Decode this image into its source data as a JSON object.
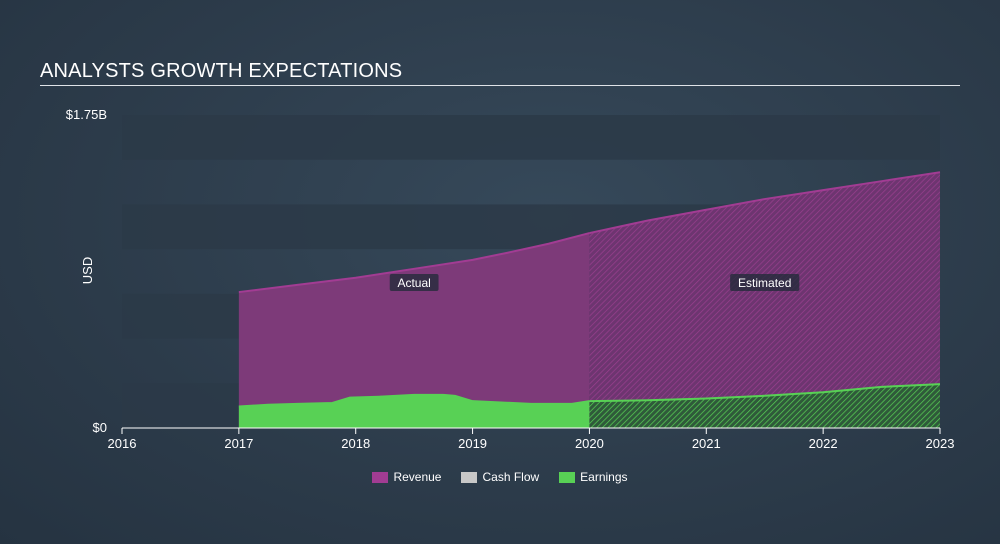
{
  "title": "ANALYSTS GROWTH EXPECTATIONS",
  "colors": {
    "revenue": "#a23c93",
    "cash_flow": "#c8c8c8",
    "earnings": "#58d155",
    "band_dark": "#2b3a48",
    "text": "#ffffff"
  },
  "chart_data": {
    "type": "area",
    "ylabel": "USD",
    "ylim": [
      0,
      1.75
    ],
    "y_unit": "billion USD",
    "y_ticks": [
      {
        "value": 0,
        "label": "$0"
      },
      {
        "value": 1.75,
        "label": "$1.75B"
      }
    ],
    "xlim": [
      2016,
      2023.0
    ],
    "x_ticks": [
      {
        "value": 2016,
        "label": "2016"
      },
      {
        "value": 2017,
        "label": "2017"
      },
      {
        "value": 2018,
        "label": "2018"
      },
      {
        "value": 2019,
        "label": "2019"
      },
      {
        "value": 2020,
        "label": "2020"
      },
      {
        "value": 2021,
        "label": "2021"
      },
      {
        "value": 2022,
        "label": "2022"
      },
      {
        "value": 2023,
        "label": "2023"
      }
    ],
    "actual_estimated_split": 2020,
    "region_labels": {
      "actual": "Actual",
      "estimated": "Estimated"
    },
    "series": [
      {
        "name": "Revenue",
        "key": "revenue",
        "x": [
          2017,
          2017.5,
          2018,
          2018.5,
          2019,
          2019.3,
          2019.65,
          2020,
          2020.5,
          2021,
          2021.5,
          2022,
          2022.5,
          2023
        ],
        "values": [
          0.76,
          0.8,
          0.84,
          0.89,
          0.94,
          0.98,
          1.03,
          1.09,
          1.16,
          1.22,
          1.28,
          1.33,
          1.38,
          1.43
        ]
      },
      {
        "name": "Cash Flow",
        "key": "cash_flow",
        "x": [],
        "values": []
      },
      {
        "name": "Earnings",
        "key": "earnings",
        "x": [
          2017,
          2017.25,
          2017.5,
          2017.8,
          2017.95,
          2018.2,
          2018.5,
          2018.75,
          2018.85,
          2019,
          2019.5,
          2019.85,
          2020,
          2020.5,
          2021,
          2021.5,
          2022,
          2022.5,
          2023
        ],
        "values": [
          0.12,
          0.13,
          0.135,
          0.14,
          0.17,
          0.175,
          0.185,
          0.185,
          0.18,
          0.15,
          0.135,
          0.135,
          0.15,
          0.155,
          0.165,
          0.18,
          0.2,
          0.23,
          0.245
        ]
      }
    ],
    "legend": [
      {
        "name": "Revenue",
        "key": "revenue"
      },
      {
        "name": "Cash Flow",
        "key": "cash_flow"
      },
      {
        "name": "Earnings",
        "key": "earnings"
      }
    ]
  }
}
